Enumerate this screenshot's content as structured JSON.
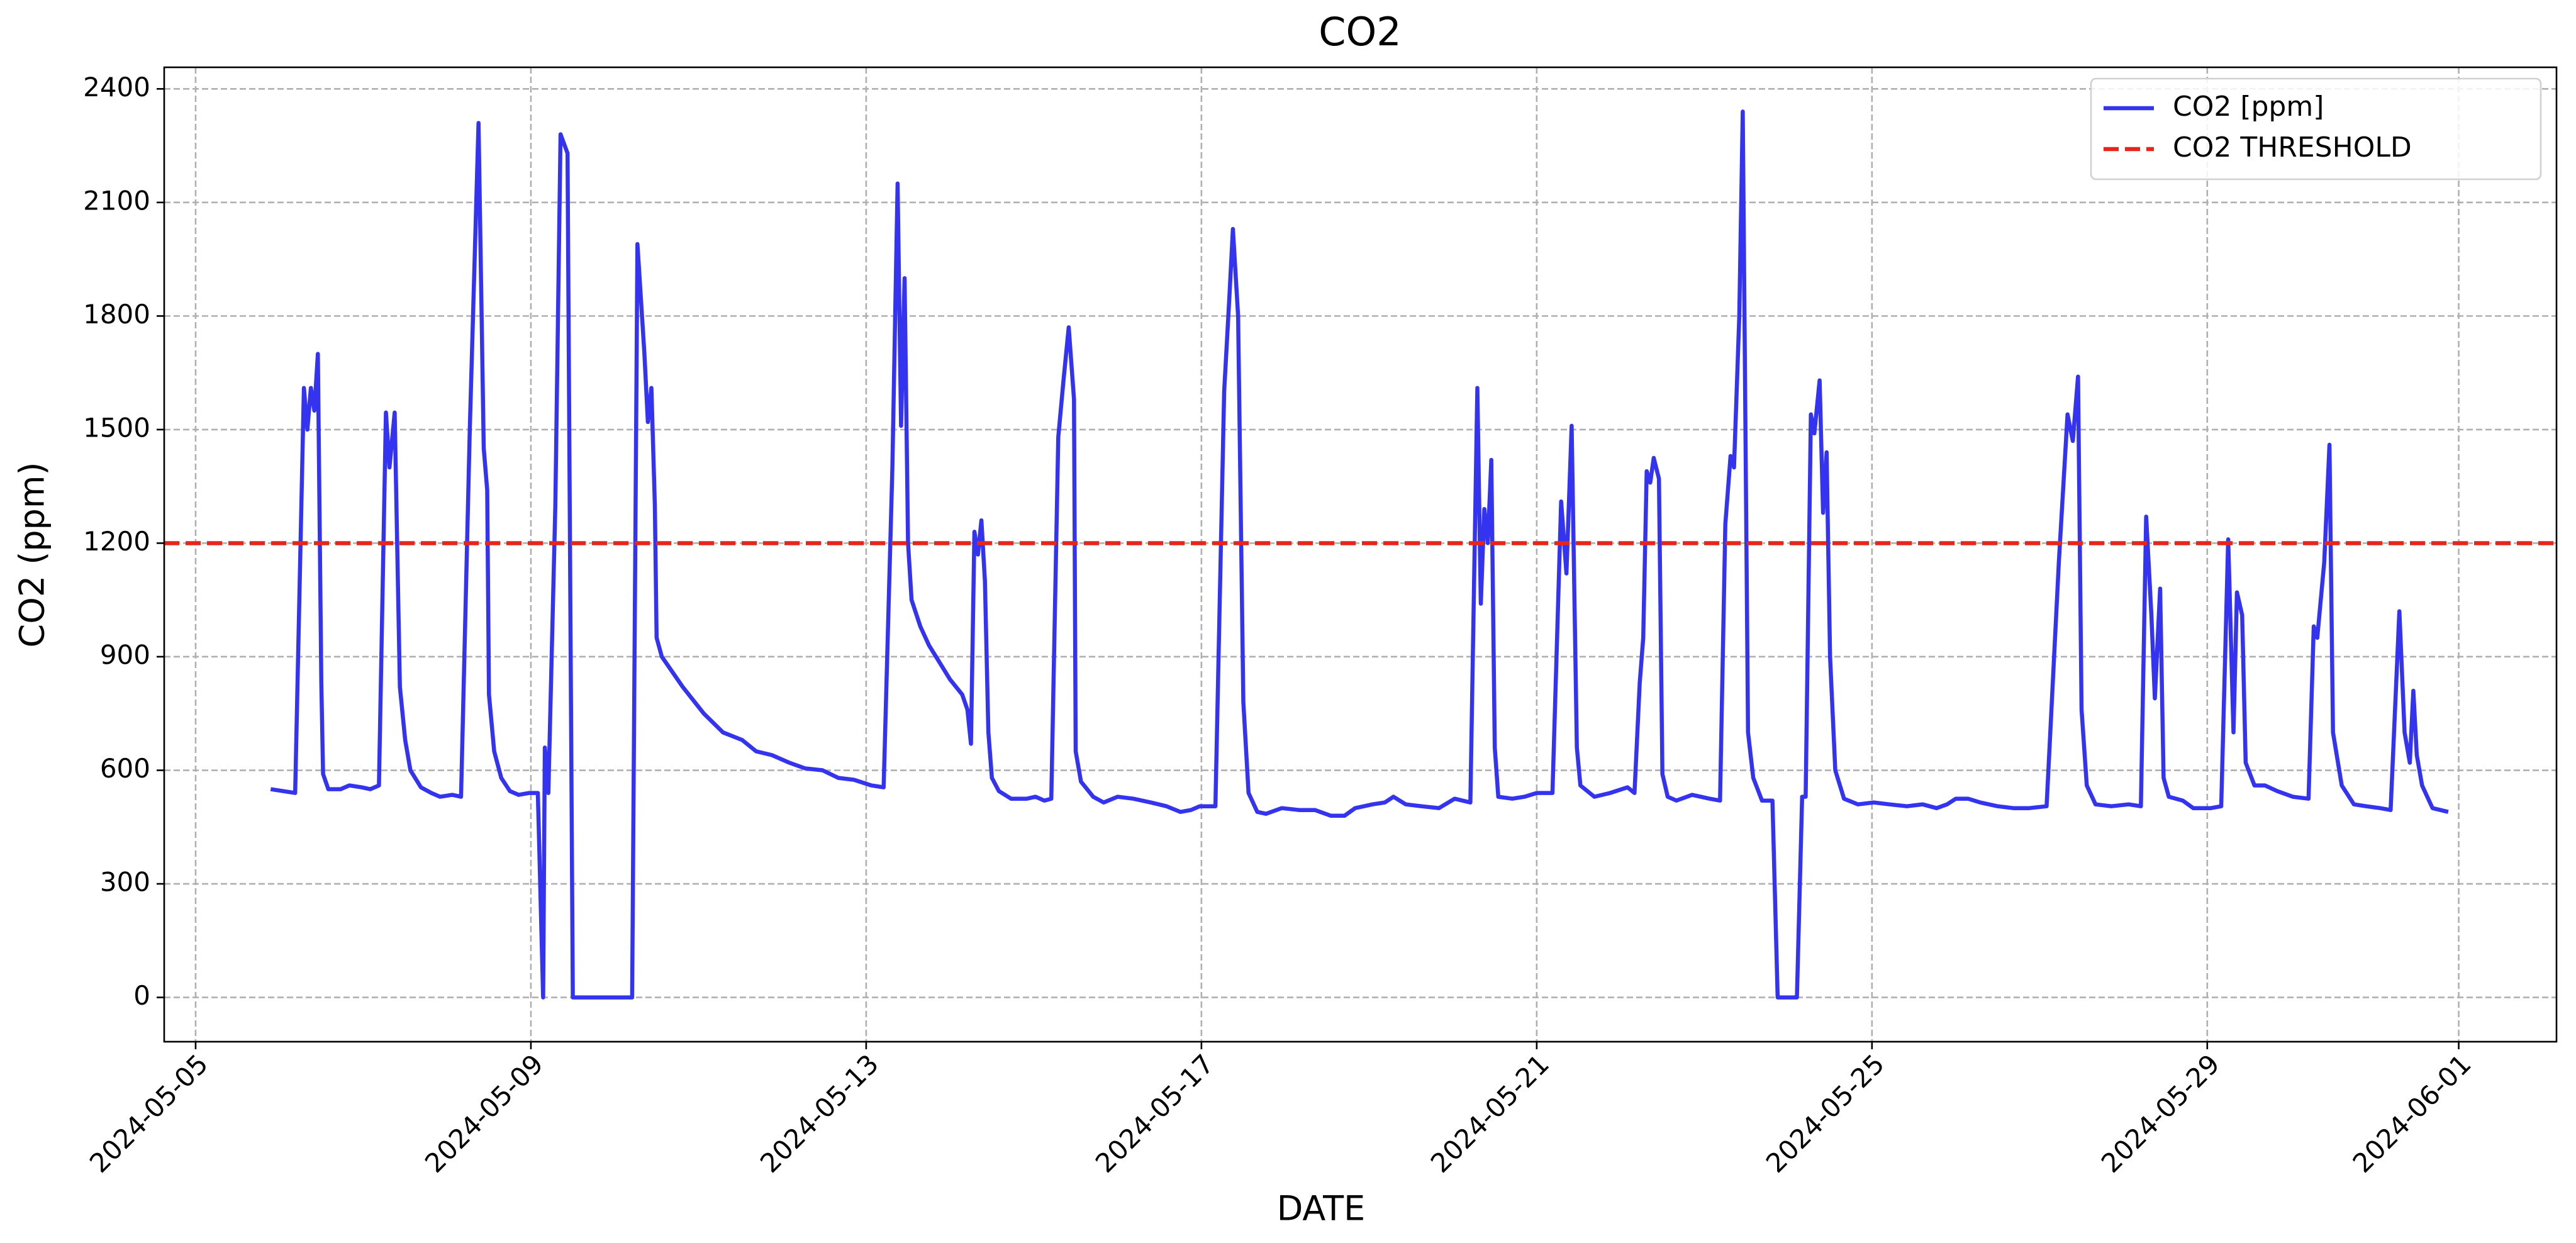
{
  "chart_data": {
    "type": "line",
    "title": "CO2",
    "xlabel": "DATE",
    "ylabel": "CO2 (ppm)",
    "x": [
      "2024-05-05 21:30",
      "2024-05-06 04:30",
      "2024-05-06 07:00",
      "2024-05-06 08:00",
      "2024-05-06 09:00",
      "2024-05-06 10:00",
      "2024-05-06 11:00",
      "2024-05-06 12:00",
      "2024-05-06 12:30",
      "2024-05-06 14:00",
      "2024-05-06 17:30",
      "2024-05-06 20:00",
      "2024-05-06 23:30",
      "2024-05-07 02:00",
      "2024-05-07 04:30",
      "2024-05-07 06:30",
      "2024-05-07 07:30",
      "2024-05-07 09:00",
      "2024-05-07 10:30",
      "2024-05-07 12:00",
      "2024-05-07 13:30",
      "2024-05-07 16:30",
      "2024-05-07 19:30",
      "2024-05-07 22:00",
      "2024-05-08 01:30",
      "2024-05-08 04:00",
      "2024-05-08 06:30",
      "2024-05-08 09:00",
      "2024-05-08 10:30",
      "2024-05-08 11:30",
      "2024-05-08 12:00",
      "2024-05-08 13:30",
      "2024-05-08 15:30",
      "2024-05-08 18:00",
      "2024-05-08 20:30",
      "2024-05-08 23:30",
      "2024-05-09 02:00",
      "2024-05-09 03:30",
      "2024-05-09 04:00",
      "2024-05-09 05:00",
      "2024-05-09 07:00",
      "2024-05-09 08:30",
      "2024-05-09 10:30",
      "2024-05-09 12:00",
      "2024-05-10 05:00",
      "2024-05-10 06:30",
      "2024-05-10 08:30",
      "2024-05-10 09:30",
      "2024-05-10 10:30",
      "2024-05-10 11:30",
      "2024-05-10 12:00",
      "2024-05-10 13:30",
      "2024-05-10 19:30",
      "2024-05-11 01:30",
      "2024-05-11 07:00",
      "2024-05-11 12:30",
      "2024-05-11 16:30",
      "2024-05-11 21:00",
      "2024-05-12 02:00",
      "2024-05-12 06:30",
      "2024-05-12 11:30",
      "2024-05-12 16:00",
      "2024-05-12 20:30",
      "2024-05-13 01:30",
      "2024-05-13 05:00",
      "2024-05-13 07:30",
      "2024-05-13 09:00",
      "2024-05-13 10:00",
      "2024-05-13 11:00",
      "2024-05-13 12:00",
      "2024-05-13 13:00",
      "2024-05-13 15:30",
      "2024-05-13 18:00",
      "2024-05-13 20:00",
      "2024-05-14 00:00",
      "2024-05-14 03:30",
      "2024-05-14 05:00",
      "2024-05-14 06:00",
      "2024-05-14 07:00",
      "2024-05-14 08:00",
      "2024-05-14 09:00",
      "2024-05-14 10:00",
      "2024-05-14 11:00",
      "2024-05-14 12:00",
      "2024-05-14 14:00",
      "2024-05-14 17:30",
      "2024-05-14 22:00",
      "2024-05-15 00:30",
      "2024-05-15 03:00",
      "2024-05-15 05:00",
      "2024-05-15 07:00",
      "2024-05-15 08:30",
      "2024-05-15 10:00",
      "2024-05-15 11:30",
      "2024-05-15 12:00",
      "2024-05-15 13:30",
      "2024-05-15 17:00",
      "2024-05-15 20:00",
      "2024-05-16 00:00",
      "2024-05-16 04:30",
      "2024-05-16 09:30",
      "2024-05-16 14:00",
      "2024-05-16 18:00",
      "2024-05-16 21:00",
      "2024-05-16 23:30",
      "2024-05-17 04:00",
      "2024-05-17 06:30",
      "2024-05-17 08:00",
      "2024-05-17 09:00",
      "2024-05-17 10:30",
      "2024-05-17 12:00",
      "2024-05-17 13:30",
      "2024-05-17 16:00",
      "2024-05-17 18:30",
      "2024-05-17 23:00",
      "2024-05-18 04:00",
      "2024-05-18 08:30",
      "2024-05-18 13:00",
      "2024-05-18 17:00",
      "2024-05-18 20:00",
      "2024-05-19 01:00",
      "2024-05-19 04:30",
      "2024-05-19 07:00",
      "2024-05-19 10:30",
      "2024-05-19 15:00",
      "2024-05-19 20:00",
      "2024-05-20 00:30",
      "2024-05-20 05:00",
      "2024-05-20 07:00",
      "2024-05-20 08:00",
      "2024-05-20 09:00",
      "2024-05-20 10:00",
      "2024-05-20 11:00",
      "2024-05-20 12:00",
      "2024-05-20 13:00",
      "2024-05-20 17:00",
      "2024-05-20 20:30",
      "2024-05-21 00:00",
      "2024-05-21 04:30",
      "2024-05-21 07:00",
      "2024-05-21 08:30",
      "2024-05-21 10:00",
      "2024-05-21 11:30",
      "2024-05-21 12:30",
      "2024-05-21 16:30",
      "2024-05-21 21:00",
      "2024-05-22 02:00",
      "2024-05-22 04:00",
      "2024-05-22 05:30",
      "2024-05-22 06:30",
      "2024-05-22 07:30",
      "2024-05-22 08:30",
      "2024-05-22 09:30",
      "2024-05-22 11:00",
      "2024-05-22 12:00",
      "2024-05-22 13:30",
      "2024-05-22 16:00",
      "2024-05-22 20:30",
      "2024-05-23 01:30",
      "2024-05-23 04:30",
      "2024-05-23 06:00",
      "2024-05-23 07:30",
      "2024-05-23 08:30",
      "2024-05-23 10:00",
      "2024-05-23 11:00",
      "2024-05-23 12:30",
      "2024-05-23 14:00",
      "2024-05-23 16:30",
      "2024-05-23 19:30",
      "2024-05-23 21:00",
      "2024-05-24 02:30",
      "2024-05-24 04:00",
      "2024-05-24 05:00",
      "2024-05-24 06:30",
      "2024-05-24 07:30",
      "2024-05-24 09:00",
      "2024-05-24 10:00",
      "2024-05-24 11:00",
      "2024-05-24 12:00",
      "2024-05-24 13:30",
      "2024-05-24 16:00",
      "2024-05-24 20:00",
      "2024-05-25 00:30",
      "2024-05-25 05:00",
      "2024-05-25 10:00",
      "2024-05-25 14:30",
      "2024-05-25 18:30",
      "2024-05-25 21:30",
      "2024-05-26 00:00",
      "2024-05-26 03:30",
      "2024-05-26 07:00",
      "2024-05-26 12:00",
      "2024-05-26 16:30",
      "2024-05-26 21:00",
      "2024-05-27 02:00",
      "2024-05-27 05:30",
      "2024-05-27 08:00",
      "2024-05-27 09:30",
      "2024-05-27 11:00",
      "2024-05-27 12:00",
      "2024-05-27 13:30",
      "2024-05-27 16:00",
      "2024-05-27 20:30",
      "2024-05-28 01:30",
      "2024-05-28 05:00",
      "2024-05-28 06:30",
      "2024-05-28 08:00",
      "2024-05-28 09:00",
      "2024-05-28 10:30",
      "2024-05-28 11:30",
      "2024-05-28 13:00",
      "2024-05-28 17:00",
      "2024-05-28 20:00",
      "2024-05-29 01:00",
      "2024-05-29 04:00",
      "2024-05-29 06:00",
      "2024-05-29 07:30",
      "2024-05-29 08:30",
      "2024-05-29 10:00",
      "2024-05-29 11:00",
      "2024-05-29 13:30",
      "2024-05-29 16:30",
      "2024-05-29 20:00",
      "2024-05-30 00:30",
      "2024-05-30 05:00",
      "2024-05-30 06:30",
      "2024-05-30 07:30",
      "2024-05-30 09:30",
      "2024-05-30 11:00",
      "2024-05-30 12:00",
      "2024-05-30 14:30",
      "2024-05-30 18:00",
      "2024-05-30 21:30",
      "2024-05-31 01:30",
      "2024-05-31 04:30",
      "2024-05-31 07:00",
      "2024-05-31 08:30",
      "2024-05-31 10:00",
      "2024-05-31 11:00",
      "2024-05-31 12:00",
      "2024-05-31 13:30",
      "2024-05-31 16:30",
      "2024-05-31 21:00"
    ],
    "series": [
      {
        "name": "CO2 [ppm]",
        "color": "#3333f0",
        "values": [
          550,
          540,
          1610,
          1500,
          1610,
          1550,
          1700,
          830,
          590,
          550,
          550,
          560,
          555,
          550,
          560,
          1545,
          1400,
          1545,
          820,
          680,
          600,
          555,
          540,
          530,
          535,
          530,
          1500,
          2310,
          1450,
          1340,
          800,
          650,
          580,
          545,
          535,
          540,
          540,
          0,
          660,
          540,
          1300,
          2280,
          2230,
          0,
          0,
          1990,
          1700,
          1520,
          1610,
          1300,
          950,
          900,
          820,
          750,
          700,
          680,
          650,
          640,
          620,
          605,
          600,
          580,
          575,
          560,
          555,
          1400,
          2150,
          1510,
          1900,
          1200,
          1050,
          980,
          930,
          900,
          840,
          800,
          760,
          670,
          1230,
          1170,
          1260,
          1100,
          700,
          580,
          545,
          525,
          525,
          530,
          520,
          525,
          1480,
          1630,
          1770,
          1580,
          650,
          570,
          530,
          515,
          530,
          525,
          515,
          505,
          490,
          495,
          505,
          505,
          1600,
          1850,
          2030,
          1800,
          780,
          540,
          490,
          485,
          500,
          495,
          495,
          480,
          480,
          500,
          510,
          515,
          530,
          510,
          505,
          500,
          525,
          515,
          1610,
          1040,
          1290,
          1200,
          1420,
          660,
          530,
          525,
          530,
          540,
          540,
          1310,
          1120,
          1510,
          660,
          560,
          530,
          540,
          555,
          540,
          830,
          950,
          1390,
          1360,
          1425,
          1370,
          590,
          530,
          520,
          535,
          525,
          520,
          1250,
          1430,
          1400,
          1800,
          2340,
          700,
          580,
          520,
          520,
          0,
          0,
          530,
          530,
          1540,
          1490,
          1630,
          1280,
          1440,
          900,
          600,
          525,
          510,
          515,
          510,
          505,
          510,
          500,
          510,
          525,
          525,
          515,
          505,
          500,
          500,
          505,
          1150,
          1540,
          1470,
          1640,
          760,
          560,
          510,
          505,
          510,
          505,
          1270,
          1010,
          790,
          1080,
          580,
          530,
          520,
          500,
          500,
          505,
          1210,
          700,
          1070,
          1010,
          620,
          560,
          560,
          545,
          530,
          525,
          980,
          950,
          1150,
          1460,
          700,
          560,
          510,
          505,
          500,
          495,
          1020,
          700,
          620,
          810,
          640,
          560,
          500,
          490
        ]
      }
    ],
    "hlines": [
      {
        "name": "CO2 THRESHOLD",
        "value": 1200,
        "color": "#e8251a",
        "style": "dashed"
      }
    ],
    "xlim": [
      "2024-05-04 15:00",
      "2024-06-02 04:00"
    ],
    "xticks": [
      "2024-05-05",
      "2024-05-09",
      "2024-05-13",
      "2024-05-17",
      "2024-05-21",
      "2024-05-25",
      "2024-05-29",
      "2024-06-01"
    ],
    "ylim": [
      -117,
      2457
    ],
    "yticks": [
      0,
      300,
      600,
      900,
      1200,
      1500,
      1800,
      2100,
      2400
    ],
    "grid": true,
    "legend": "upper right"
  }
}
